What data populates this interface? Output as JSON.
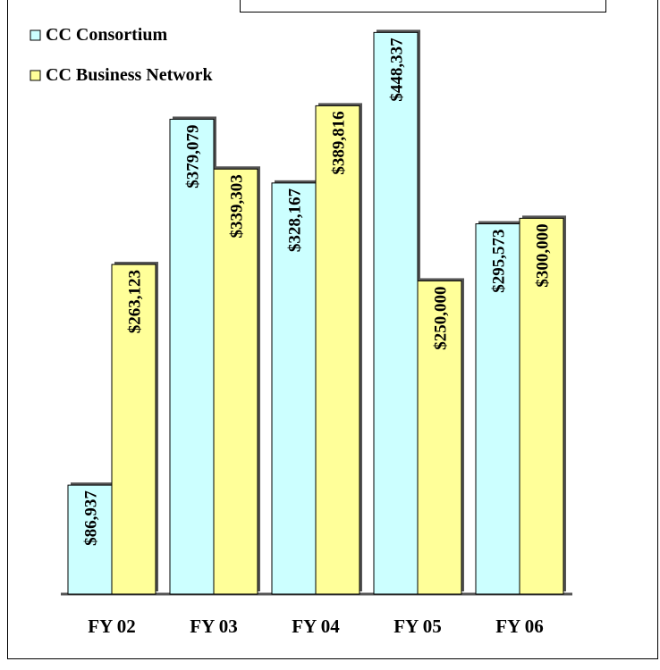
{
  "chart_data": {
    "type": "bar",
    "categories": [
      "FY 02",
      "FY 03",
      "FY 04",
      "FY 05",
      "FY 06"
    ],
    "series": [
      {
        "name": "CC Consortium",
        "values": [
          86937,
          379079,
          328167,
          448337,
          295573
        ],
        "labels": [
          "$86,937",
          "$379,079",
          "$328,167",
          "$448,337",
          "$295,573"
        ]
      },
      {
        "name": "CC Business Network",
        "values": [
          263123,
          339303,
          389816,
          250000,
          300000
        ],
        "labels": [
          "$263,123",
          "$339,303",
          "$389,816",
          "$250,000",
          "$300,000"
        ]
      }
    ],
    "ylim": [
      0,
      460000
    ],
    "grid": false,
    "legend": "top-left",
    "colors": {
      "series_1": "#ccffff",
      "series_2": "#ffff99",
      "outline": "#000000",
      "shadow": "#555555"
    }
  }
}
